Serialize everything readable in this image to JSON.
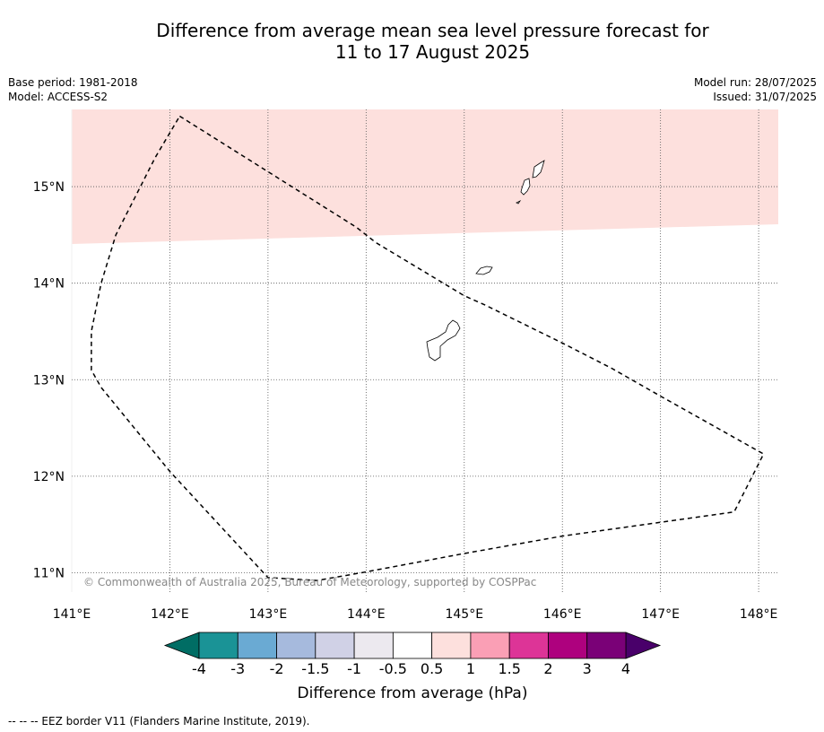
{
  "title": {
    "line1": "Difference from average mean sea level pressure forecast for",
    "line2": "11 to 17 August 2025"
  },
  "meta": {
    "base_period": "Base period: 1981-2018",
    "model": "Model: ACCESS-S2",
    "model_run": "Model run: 28/07/2025",
    "issued": "Issued: 31/07/2025"
  },
  "map": {
    "lon_labels": [
      "141°E",
      "142°E",
      "143°E",
      "144°E",
      "145°E",
      "146°E",
      "147°E",
      "148°E"
    ],
    "lat_labels": [
      "15°N",
      "14°N",
      "13°N",
      "12°N",
      "11°N"
    ],
    "lon_values": [
      141,
      142,
      143,
      144,
      145,
      146,
      147,
      148
    ],
    "lat_values": [
      15,
      14,
      13,
      12,
      11
    ],
    "extent": {
      "lon": [
        141,
        148.2
      ],
      "lat": [
        10.8,
        15.8
      ]
    },
    "copyright": "© Commonwealth of Australia 2025, Bureau of Meteorology, supported by COSPPac",
    "shaded_region_color": "#fde0dd",
    "shaded_region_category": "0.5 to 1",
    "eez_border": [
      [
        142.1,
        15.73
      ],
      [
        143.9,
        14.58
      ],
      [
        144.1,
        14.42
      ],
      [
        145.0,
        13.87
      ],
      [
        145.2,
        13.78
      ],
      [
        146.0,
        13.38
      ],
      [
        146.5,
        13.12
      ],
      [
        147.0,
        12.83
      ],
      [
        148.05,
        12.23
      ],
      [
        147.75,
        11.63
      ],
      [
        146.0,
        11.38
      ],
      [
        145.0,
        11.2
      ],
      [
        143.95,
        11.0
      ],
      [
        143.5,
        10.92
      ],
      [
        143.0,
        10.95
      ],
      [
        142.0,
        12.05
      ],
      [
        141.3,
        12.92
      ],
      [
        141.2,
        13.1
      ],
      [
        141.2,
        13.5
      ],
      [
        141.3,
        14.0
      ],
      [
        141.45,
        14.5
      ],
      [
        141.7,
        15.0
      ],
      [
        141.85,
        15.3
      ],
      [
        142.1,
        15.73
      ]
    ]
  },
  "colorbar": {
    "labels": [
      "-4",
      "-3",
      "-2",
      "-1.5",
      "-1",
      "-0.5",
      "0.5",
      "1",
      "1.5",
      "2",
      "3",
      "4"
    ],
    "colors": [
      "#1a9396",
      "#6aaad3",
      "#a6badd",
      "#d0d1e6",
      "#ece9ef",
      "#ffffff",
      "#fde0dd",
      "#fa9fb5",
      "#dd3497",
      "#ae017e",
      "#7a0177"
    ],
    "under_color": "#006d64",
    "over_color": "#49006a",
    "title": "Difference from average (hPa)"
  },
  "footer": "--  --  -- EEZ border V11 (Flanders Marine Institute, 2019)."
}
